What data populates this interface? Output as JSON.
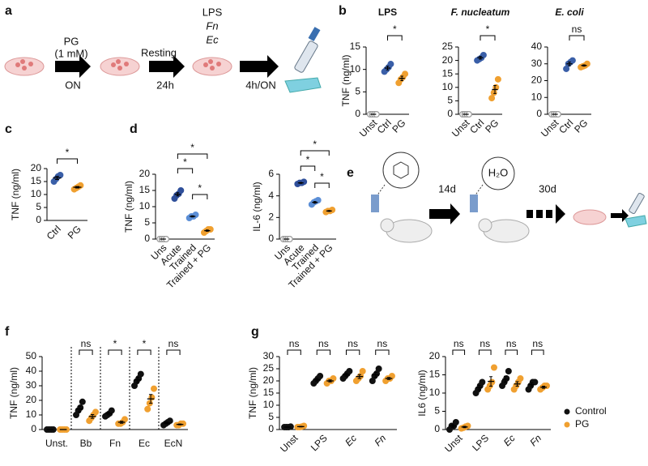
{
  "panels": [
    "a",
    "b",
    "c",
    "d",
    "e",
    "f",
    "g"
  ],
  "diagram_a": {
    "treatment": "PG",
    "dose": "(1 mM)",
    "treatment_time": "ON",
    "rest": "Resting",
    "rest_time": "24h",
    "stimuli": [
      "LPS",
      "Fn",
      "Ec"
    ],
    "stimulus_time": "4h/ON"
  },
  "diagram_e": {
    "first_period": "14d",
    "water": "H₂O",
    "second_period": "30d"
  },
  "chart_data": [
    {
      "type": "dot",
      "title": "LPS",
      "title_style": "normal",
      "y_label": "TNF (ng/ml)",
      "categories": [
        "Unst",
        "Ctrl",
        "PG"
      ],
      "colors": [
        "#9a9a9a",
        "#3a5fa8",
        "#f0a030"
      ],
      "hollow": [
        true,
        false,
        false
      ],
      "points": [
        [
          0,
          0,
          0,
          0
        ],
        [
          9.5,
          10,
          10.5,
          11.2
        ],
        [
          7,
          7.8,
          8.3,
          9
        ]
      ],
      "means": [
        0,
        10.3,
        8
      ],
      "errors": [
        0,
        0.4,
        0.5
      ],
      "ylim": [
        0,
        15
      ],
      "yticks": [
        0,
        5,
        10,
        15
      ],
      "brackets": [
        {
          "between": [
            "Ctrl",
            "PG"
          ],
          "label": "*"
        }
      ]
    },
    {
      "type": "dot",
      "title": "F. nucleatum",
      "title_style": "italic",
      "categories": [
        "Unst",
        "Ctrl",
        "PG"
      ],
      "colors": [
        "#9a9a9a",
        "#3a5fa8",
        "#f0a030"
      ],
      "hollow": [
        true,
        false,
        false
      ],
      "points": [
        [
          0,
          0,
          0,
          0
        ],
        [
          20,
          20.5,
          21,
          22
        ],
        [
          6,
          8,
          10,
          13
        ]
      ],
      "means": [
        0,
        21,
        9.2
      ],
      "errors": [
        0,
        0.5,
        1.5
      ],
      "ylim": [
        0,
        25
      ],
      "yticks": [
        0,
        5,
        10,
        15,
        20,
        25
      ],
      "brackets": [
        {
          "between": [
            "Ctrl",
            "PG"
          ],
          "label": "*"
        }
      ]
    },
    {
      "type": "dot",
      "title": "E. coli",
      "title_style": "italic",
      "categories": [
        "Unst",
        "Ctrl",
        "PG"
      ],
      "colors": [
        "#9a9a9a",
        "#3a5fa8",
        "#f0a030"
      ],
      "hollow": [
        true,
        false,
        false
      ],
      "points": [
        [
          0,
          0,
          0,
          0
        ],
        [
          27,
          30,
          31,
          32
        ],
        [
          28,
          28.5,
          29,
          30
        ]
      ],
      "means": [
        0,
        30,
        29
      ],
      "errors": [
        0,
        1.1,
        0.4
      ],
      "ylim": [
        0,
        40
      ],
      "yticks": [
        0,
        10,
        20,
        30,
        40
      ],
      "brackets": [
        {
          "between": [
            "Ctrl",
            "PG"
          ],
          "label": "ns"
        }
      ]
    },
    {
      "type": "dot",
      "y_label": "TNF (ng/ml)",
      "categories": [
        "Ctrl",
        "PG"
      ],
      "colors": [
        "#3a5fa8",
        "#f0a030"
      ],
      "hollow": [
        false,
        false
      ],
      "points": [
        [
          15,
          16,
          17,
          17.5
        ],
        [
          12,
          12.5,
          13,
          13.5
        ]
      ],
      "means": [
        16.4,
        12.8
      ],
      "errors": [
        0.6,
        0.3
      ],
      "ylim": [
        0,
        20
      ],
      "yticks": [
        0,
        5,
        10,
        15,
        20
      ],
      "brackets": [
        {
          "between": [
            "Ctrl",
            "PG"
          ],
          "label": "*"
        }
      ]
    },
    {
      "type": "dot",
      "y_label": "TNF (ng/ml)",
      "categories": [
        "Uns",
        "Acute",
        "Trained",
        "Trained + PG"
      ],
      "colors": [
        "#9a9a9a",
        "#2f4f9a",
        "#5b8ed6",
        "#f0a030"
      ],
      "hollow": [
        true,
        false,
        false,
        false
      ],
      "points": [
        [
          0,
          0,
          0,
          0
        ],
        [
          12.5,
          13.5,
          14,
          15
        ],
        [
          6.5,
          7,
          7,
          7.5
        ],
        [
          2,
          2.5,
          3,
          3
        ]
      ],
      "means": [
        0,
        13.8,
        7,
        2.6
      ],
      "errors": [
        0,
        0.5,
        0.2,
        0.2
      ],
      "ylim": [
        0,
        20
      ],
      "yticks": [
        0,
        5,
        10,
        15,
        20
      ],
      "brackets": [
        {
          "between": [
            "Acute",
            "Trained"
          ],
          "label": "*"
        },
        {
          "between": [
            "Trained",
            "Trained + PG"
          ],
          "label": "*"
        },
        {
          "between": [
            "Acute",
            "Trained + PG"
          ],
          "label": "*"
        }
      ]
    },
    {
      "type": "dot",
      "y_label": "IL-6 (ng/ml)",
      "categories": [
        "Uns",
        "Acute",
        "Trained",
        "Trained + PG"
      ],
      "colors": [
        "#9a9a9a",
        "#2f4f9a",
        "#5b8ed6",
        "#f0a030"
      ],
      "hollow": [
        true,
        false,
        false,
        false
      ],
      "points": [
        [
          0,
          0,
          0,
          0
        ],
        [
          5.1,
          5.2,
          5.2,
          5.3
        ],
        [
          3.2,
          3.4,
          3.5,
          3.6
        ],
        [
          2.5,
          2.6,
          2.6,
          2.7
        ]
      ],
      "means": [
        0,
        5.2,
        3.4,
        2.6
      ],
      "errors": [
        0,
        0.04,
        0.08,
        0.04
      ],
      "ylim": [
        0,
        6
      ],
      "yticks": [
        0,
        2,
        4,
        6
      ],
      "brackets": [
        {
          "between": [
            "Acute",
            "Trained"
          ],
          "label": "*"
        },
        {
          "between": [
            "Trained",
            "Trained + PG"
          ],
          "label": "*"
        },
        {
          "between": [
            "Acute",
            "Trained + PG"
          ],
          "label": "*"
        }
      ]
    },
    {
      "type": "dot",
      "y_label": "TNF (ng/ml)",
      "categories": [
        "Unst.",
        "Bb",
        "Fn",
        "Ec",
        "EcN"
      ],
      "separators": true,
      "series": [
        {
          "color": "#111111",
          "points": [
            [
              0,
              0,
              0,
              0
            ],
            [
              10,
              13,
              15,
              19
            ],
            [
              9,
              10,
              11,
              13
            ],
            [
              30,
              33,
              35,
              38
            ],
            [
              3,
              4,
              5,
              6
            ]
          ],
          "means": [
            0,
            14,
            11,
            34,
            4.5
          ],
          "errors": [
            0,
            1.9,
            0.9,
            1.7,
            0.6
          ]
        },
        {
          "color": "#f0a030",
          "points": [
            [
              0,
              0,
              0,
              0
            ],
            [
              6,
              8,
              10,
              12
            ],
            [
              4,
              4,
              5,
              7
            ],
            [
              14,
              18,
              22,
              28
            ],
            [
              3,
              3,
              4,
              4
            ]
          ],
          "means": [
            0,
            9,
            5,
            21,
            3.5
          ],
          "errors": [
            0,
            1.3,
            0.7,
            3,
            0.3
          ]
        }
      ],
      "ylim": [
        0,
        50
      ],
      "yticks": [
        0,
        10,
        20,
        30,
        40,
        50
      ],
      "brackets": [
        {
          "category": "Bb",
          "label": "ns"
        },
        {
          "category": "Fn",
          "label": "*"
        },
        {
          "category": "Ec",
          "label": "*"
        },
        {
          "category": "EcN",
          "label": "ns"
        }
      ]
    },
    {
      "type": "dot",
      "y_label": "TNF (ng/ml)",
      "categories": [
        "Unst",
        "LPS",
        "Ec",
        "Fn"
      ],
      "category_style": [
        "normal",
        "normal",
        "italic",
        "italic"
      ],
      "series": [
        {
          "color": "#111111",
          "points": [
            [
              1,
              1,
              1,
              1.2
            ],
            [
              19,
              20,
              21,
              22
            ],
            [
              21,
              22,
              23,
              24
            ],
            [
              20,
              22,
              23,
              25
            ]
          ],
          "means": [
            1,
            20.5,
            22.5,
            22.5
          ],
          "errors": [
            0.05,
            0.6,
            0.6,
            1
          ]
        },
        {
          "color": "#f0a030",
          "points": [
            [
              1,
              1,
              1.2,
              1.5
            ],
            [
              19,
              20,
              20,
              21
            ],
            [
              20,
              21,
              22,
              24
            ],
            [
              20,
              21,
              21,
              22
            ]
          ],
          "means": [
            1.2,
            20,
            21.8,
            21
          ],
          "errors": [
            0.1,
            0.4,
            0.8,
            0.4
          ]
        }
      ],
      "ylim": [
        0,
        30
      ],
      "yticks": [
        0,
        5,
        10,
        15,
        20,
        25,
        30
      ],
      "brackets": [
        {
          "category": "Unst",
          "label": "ns"
        },
        {
          "category": "LPS",
          "label": "ns"
        },
        {
          "category": "Ec",
          "label": "ns"
        },
        {
          "category": "Fn",
          "label": "ns"
        }
      ]
    },
    {
      "type": "dot",
      "y_label": "IL6 (ng/ml)",
      "categories": [
        "Unst",
        "LPS",
        "Ec",
        "Fn"
      ],
      "category_style": [
        "normal",
        "normal",
        "italic",
        "italic"
      ],
      "legend": "right",
      "series": [
        {
          "name": "Control",
          "color": "#111111",
          "points": [
            [
              0,
              1,
              1,
              2
            ],
            [
              10,
              11,
              12,
              13
            ],
            [
              12,
              13,
              14,
              16
            ],
            [
              11,
              12,
              13,
              13
            ]
          ],
          "means": [
            1,
            11.5,
            13.8,
            12.3
          ],
          "errors": [
            0.4,
            0.6,
            0.8,
            0.5
          ]
        },
        {
          "name": "PG",
          "color": "#f0a030",
          "points": [
            [
              0.3,
              0.5,
              0.8,
              1
            ],
            [
              11,
              12,
              13,
              17
            ],
            [
              11,
              12,
              13,
              14
            ],
            [
              11,
              11.5,
              12,
              12
            ]
          ],
          "means": [
            0.7,
            13.2,
            12.5,
            11.6
          ],
          "errors": [
            0.2,
            1.3,
            0.6,
            0.3
          ]
        }
      ],
      "ylim": [
        0,
        20
      ],
      "yticks": [
        0,
        5,
        10,
        15,
        20
      ],
      "brackets": [
        {
          "category": "Unst",
          "label": "ns"
        },
        {
          "category": "LPS",
          "label": "ns"
        },
        {
          "category": "Ec",
          "label": "ns"
        },
        {
          "category": "Fn",
          "label": "ns"
        }
      ]
    }
  ]
}
